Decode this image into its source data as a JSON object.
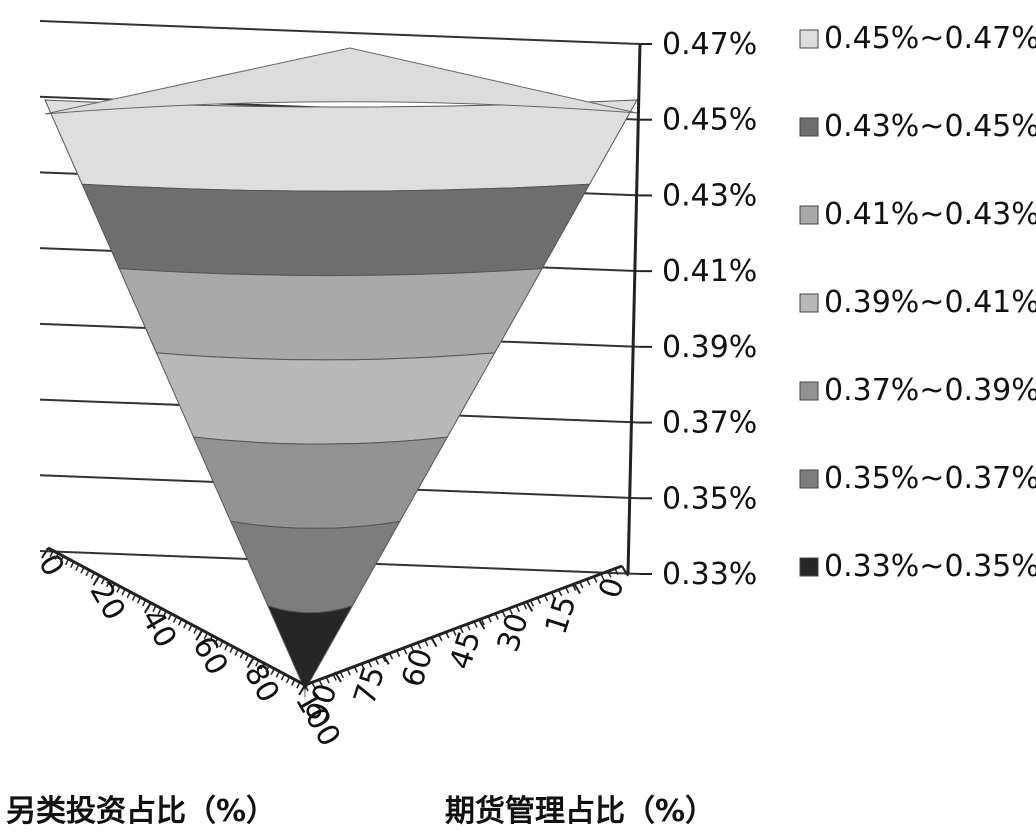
{
  "chart_data": {
    "type": "surface",
    "x_axis": {
      "label": "另类投资占比（%）",
      "ticks": [
        "0",
        "20",
        "40",
        "60",
        "80",
        "100"
      ],
      "range": [
        0,
        100
      ]
    },
    "y_axis": {
      "label": "期货管理占比（%）",
      "ticks": [
        "0",
        "15",
        "30",
        "45",
        "60",
        "75",
        "90"
      ],
      "range": [
        0,
        90
      ]
    },
    "z_axis": {
      "ticks": [
        "0.33%",
        "0.35%",
        "0.37%",
        "0.39%",
        "0.41%",
        "0.43%",
        "0.45%",
        "0.47%"
      ],
      "range": [
        0.33,
        0.47
      ],
      "unit": "%"
    },
    "legend_position": "right",
    "gridlines": true,
    "series": [
      {
        "name": "0.45%~0.47%",
        "range": [
          0.45,
          0.47
        ],
        "color": "#dedede"
      },
      {
        "name": "0.43%~0.45%",
        "range": [
          0.43,
          0.45
        ],
        "color": "#6e6e6e"
      },
      {
        "name": "0.41%~0.43%",
        "range": [
          0.41,
          0.43
        ],
        "color": "#a9a9a9"
      },
      {
        "name": "0.39%~0.41%",
        "range": [
          0.39,
          0.41
        ],
        "color": "#b8b8b8"
      },
      {
        "name": "0.37%~0.39%",
        "range": [
          0.37,
          0.39
        ],
        "color": "#939393"
      },
      {
        "name": "0.35%~0.37%",
        "range": [
          0.35,
          0.37
        ],
        "color": "#7d7d7d"
      },
      {
        "name": "0.33%~0.35%",
        "range": [
          0.33,
          0.35
        ],
        "color": "#262626"
      }
    ]
  }
}
